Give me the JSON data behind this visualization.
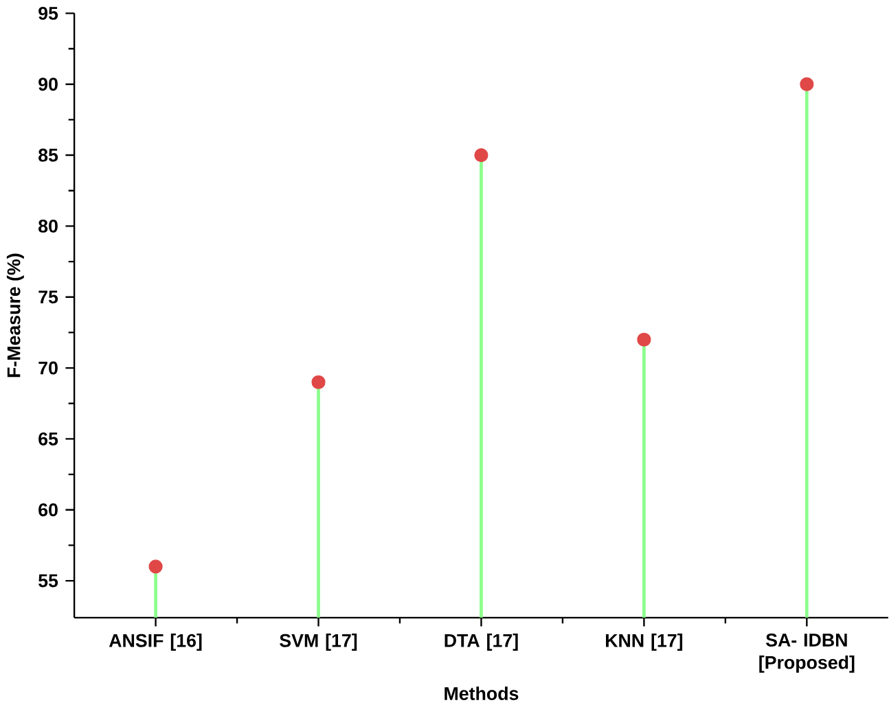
{
  "chart_data": {
    "type": "lollipop",
    "xlabel": "Methods",
    "ylabel": "F-Measure (%)",
    "categories": [
      "ANSIF [16]",
      "SVM [17]",
      "DTA [17]",
      "KNN [17]",
      "SA- IDBN [Proposed]"
    ],
    "series": [
      {
        "color": "#e04848",
        "values": [
          56,
          69,
          85,
          72,
          90
        ]
      }
    ],
    "ylim": [
      52.4,
      95
    ],
    "yticks": [
      55,
      60,
      65,
      70,
      75,
      80,
      85,
      90,
      95
    ],
    "marker": "circle"
  }
}
